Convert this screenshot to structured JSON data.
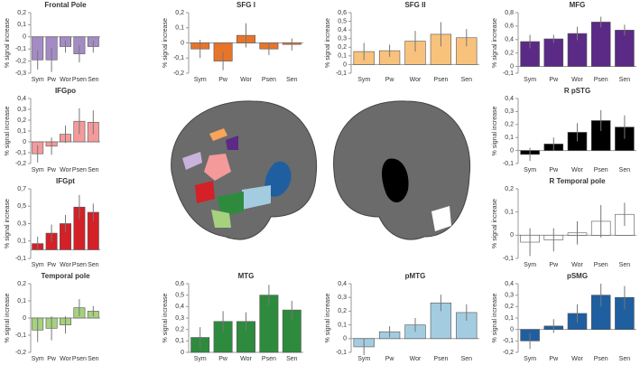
{
  "chart_data": [
    {
      "type": "bar",
      "title": "Frontal Pole",
      "ylabel": "% signal increase",
      "categories": [
        "Sym",
        "Pw",
        "Wor",
        "Psen",
        "Sen"
      ],
      "values": [
        -0.19,
        -0.19,
        -0.08,
        -0.14,
        -0.08
      ],
      "errors": [
        0.08,
        0.1,
        0.05,
        0.07,
        0.05
      ],
      "color": "#a58bc6",
      "ylim": [
        -0.3,
        0.2
      ],
      "yticks": [
        {
          "value": -0.3,
          "label": "-0,3"
        },
        {
          "value": -0.2,
          "label": "-0,2"
        },
        {
          "value": -0.1,
          "label": "-0,1"
        },
        0,
        {
          "value": 0.1,
          "label": "0,1"
        },
        {
          "value": 0.2,
          "label": "0,2"
        }
      ]
    },
    {
      "type": "bar",
      "title": "SFG I",
      "ylabel": "% signal increase",
      "categories": [
        "Sym",
        "Pw",
        "Wor",
        "Psen",
        "Sen"
      ],
      "values": [
        -0.04,
        -0.12,
        0.05,
        -0.04,
        -0.01
      ],
      "errors": [
        0.06,
        0.06,
        0.08,
        0.04,
        0.04
      ],
      "color": "#e8742a",
      "ylim": [
        -0.2,
        0.2
      ],
      "yticks": [
        {
          "value": -0.2,
          "label": "-0,2"
        },
        {
          "value": -0.1,
          "label": "-0,1"
        },
        0,
        {
          "value": 0.1,
          "label": "0,1"
        },
        {
          "value": 0.2,
          "label": "0,2"
        }
      ]
    },
    {
      "type": "bar",
      "title": "SFG II",
      "ylabel": "% signal increase",
      "categories": [
        "Sym",
        "Pw",
        "Wor",
        "Psen",
        "Sen"
      ],
      "values": [
        0.15,
        0.16,
        0.27,
        0.35,
        0.31
      ],
      "errors": [
        0.1,
        0.07,
        0.12,
        0.14,
        0.1
      ],
      "color": "#f8c27c",
      "ylim": [
        -0.1,
        0.6
      ],
      "yticks": [
        {
          "value": -0.1,
          "label": "-0,1"
        },
        0,
        {
          "value": 0.1,
          "label": "0,1"
        },
        {
          "value": 0.2,
          "label": "0,2"
        },
        {
          "value": 0.3,
          "label": "0,3"
        },
        {
          "value": 0.4,
          "label": "0,4"
        },
        {
          "value": 0.5,
          "label": "0,5"
        },
        {
          "value": 0.6,
          "label": "0,6"
        }
      ]
    },
    {
      "type": "bar",
      "title": "MFG",
      "ylabel": "% signal increase",
      "categories": [
        "Sym",
        "Pw",
        "Wor",
        "Psen",
        "Sen"
      ],
      "values": [
        0.37,
        0.41,
        0.49,
        0.66,
        0.54
      ],
      "errors": [
        0.1,
        0.06,
        0.1,
        0.08,
        0.08
      ],
      "color": "#5b2a86",
      "ylim": [
        -0.1,
        0.8
      ],
      "yticks": [
        {
          "value": -0.1,
          "label": "-0,1"
        },
        0,
        {
          "value": 0.2,
          "label": "0,2"
        },
        {
          "value": 0.4,
          "label": "0,4"
        },
        {
          "value": 0.6,
          "label": "0,6"
        },
        {
          "value": 0.8,
          "label": "0,8"
        }
      ]
    },
    {
      "type": "bar",
      "title": "IFGpo",
      "ylabel": "% signal increase",
      "categories": [
        "Sym",
        "Pw",
        "Wor",
        "Psen",
        "Sen"
      ],
      "values": [
        -0.11,
        -0.04,
        0.07,
        0.19,
        0.18
      ],
      "errors": [
        0.08,
        0.08,
        0.08,
        0.12,
        0.11
      ],
      "color": "#f49a9b",
      "ylim": [
        -0.2,
        0.4
      ],
      "yticks": [
        {
          "value": -0.2,
          "label": "-0,2"
        },
        {
          "value": -0.1,
          "label": "-0,1"
        },
        0,
        {
          "value": 0.1,
          "label": "0,1"
        },
        {
          "value": 0.2,
          "label": "0,2"
        },
        {
          "value": 0.3,
          "label": "0,3"
        },
        {
          "value": 0.4,
          "label": "0,4"
        }
      ]
    },
    {
      "type": "bar",
      "title": "R pSTG",
      "ylabel": "% signal increase",
      "categories": [
        "Sym",
        "Pw",
        "Wor",
        "Psen",
        "Sen"
      ],
      "values": [
        -0.03,
        0.05,
        0.14,
        0.23,
        0.18
      ],
      "errors": [
        0.05,
        0.05,
        0.07,
        0.08,
        0.09
      ],
      "color": "#000000",
      "ylim": [
        -0.1,
        0.4
      ],
      "yticks": [
        {
          "value": -0.1,
          "label": "-0,1"
        },
        0,
        {
          "value": 0.1,
          "label": "0,1"
        },
        {
          "value": 0.2,
          "label": "0,2"
        },
        {
          "value": 0.3,
          "label": "0,3"
        },
        {
          "value": 0.4,
          "label": "0,4"
        }
      ]
    },
    {
      "type": "bar",
      "title": "IFGpt",
      "ylabel": "% signal increase",
      "categories": [
        "Sym",
        "Pw",
        "Wor",
        "Psen",
        "Sen"
      ],
      "values": [
        0.07,
        0.19,
        0.3,
        0.49,
        0.43
      ],
      "errors": [
        0.08,
        0.1,
        0.1,
        0.14,
        0.1
      ],
      "color": "#d42027",
      "ylim": [
        -0.1,
        0.7
      ],
      "yticks": [
        {
          "value": -0.1,
          "label": "-0,1"
        },
        {
          "value": 0.1,
          "label": "0,1"
        },
        {
          "value": 0.3,
          "label": "0,3"
        },
        {
          "value": 0.5,
          "label": "0,5"
        },
        {
          "value": 0.7,
          "label": "0,7"
        }
      ]
    },
    {
      "type": "bar",
      "title": "R Temporal pole",
      "ylabel": "% signal increase",
      "categories": [
        "Sym",
        "Pw",
        "Wor",
        "Psen",
        "Sen"
      ],
      "values": [
        -0.03,
        -0.02,
        0.01,
        0.06,
        0.09
      ],
      "errors": [
        0.06,
        0.05,
        0.05,
        0.07,
        0.05
      ],
      "color": "#ffffff",
      "ylim": [
        -0.1,
        0.2
      ],
      "yticks": [
        {
          "value": -0.1,
          "label": "-0,1"
        },
        0,
        {
          "value": 0.1,
          "label": "0,1"
        },
        {
          "value": 0.2,
          "label": "0,2"
        }
      ]
    },
    {
      "type": "bar",
      "title": "Temporal pole",
      "ylabel": "% signal increase",
      "categories": [
        "Sym",
        "Pw",
        "Wor",
        "Psen",
        "Sen"
      ],
      "values": [
        -0.07,
        -0.06,
        -0.04,
        0.06,
        0.04
      ],
      "errors": [
        0.07,
        0.07,
        0.05,
        0.05,
        0.03
      ],
      "color": "#a6d17e",
      "ylim": [
        -0.2,
        0.2
      ],
      "yticks": [
        {
          "value": -0.2,
          "label": "-0,2"
        },
        {
          "value": -0.1,
          "label": "-0,1"
        },
        0,
        {
          "value": 0.1,
          "label": "0,1"
        },
        {
          "value": 0.2,
          "label": "0,2"
        }
      ]
    },
    {
      "type": "bar",
      "title": "MTG",
      "ylabel": "% signal increase",
      "categories": [
        "Sym",
        "Pw",
        "Wor",
        "Psen",
        "Sen"
      ],
      "values": [
        0.13,
        0.27,
        0.27,
        0.5,
        0.37
      ],
      "errors": [
        0.09,
        0.09,
        0.08,
        0.09,
        0.08
      ],
      "color": "#2e8b3e",
      "ylim": [
        0,
        0.6
      ],
      "yticks": [
        0,
        {
          "value": 0.1,
          "label": "0,1"
        },
        {
          "value": 0.2,
          "label": "0,2"
        },
        {
          "value": 0.3,
          "label": "0,3"
        },
        {
          "value": 0.4,
          "label": "0,4"
        },
        {
          "value": 0.5,
          "label": "0,5"
        },
        {
          "value": 0.6,
          "label": "0,6"
        }
      ]
    },
    {
      "type": "bar",
      "title": "pMTG",
      "ylabel": "% signal increase",
      "categories": [
        "Sym",
        "Pw",
        "Wor",
        "Psen",
        "Sen"
      ],
      "values": [
        -0.06,
        0.05,
        0.1,
        0.26,
        0.19
      ],
      "errors": [
        0.06,
        0.04,
        0.05,
        0.06,
        0.06
      ],
      "color": "#a3cce0",
      "ylim": [
        -0.1,
        0.4
      ],
      "yticks": [
        {
          "value": -0.1,
          "label": "-0,1"
        },
        0,
        {
          "value": 0.1,
          "label": "0,1"
        },
        {
          "value": 0.2,
          "label": "0,2"
        },
        {
          "value": 0.3,
          "label": "0,3"
        },
        {
          "value": 0.4,
          "label": "0,4"
        }
      ]
    },
    {
      "type": "bar",
      "title": "pSMG",
      "ylabel": "% signal increase",
      "categories": [
        "Sym",
        "Pw",
        "Wor",
        "Psen",
        "Sen"
      ],
      "values": [
        -0.1,
        0.03,
        0.14,
        0.3,
        0.28
      ],
      "errors": [
        0.07,
        0.06,
        0.08,
        0.1,
        0.1
      ],
      "color": "#1f5fa0",
      "ylim": [
        -0.2,
        0.4
      ],
      "yticks": [
        {
          "value": -0.2,
          "label": "-0,2"
        },
        {
          "value": -0.1,
          "label": "-0,1"
        },
        0,
        {
          "value": 0.1,
          "label": "0,1"
        },
        {
          "value": 0.2,
          "label": "0,2"
        },
        {
          "value": 0.3,
          "label": "0,3"
        },
        {
          "value": 0.4,
          "label": "0,4"
        }
      ]
    }
  ]
}
